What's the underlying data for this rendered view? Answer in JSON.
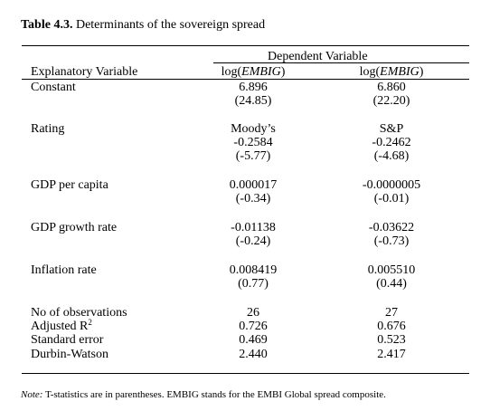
{
  "title": {
    "label": "Table 4.3.",
    "text": "Determinants of the sovereign spread"
  },
  "header": {
    "group": "Dependent Variable",
    "col0": "Explanatory Variable",
    "col1_prefix": "log(",
    "col1_var": "EMBIG",
    "col1_suffix": ")",
    "col2_prefix": "log(",
    "col2_var": "EMBIG",
    "col2_suffix": ")"
  },
  "rows": {
    "constant": {
      "label": "Constant",
      "c1": "6.896",
      "c1_t": "(24.85)",
      "c2": "6.860",
      "c2_t": "(22.20)"
    },
    "rating": {
      "label": "Rating",
      "c1_src": "Moody’s",
      "c2_src": "S&P",
      "c1": "-0.2584",
      "c1_t": "(-5.77)",
      "c2": "-0.2462",
      "c2_t": "(-4.68)"
    },
    "gdp_pc": {
      "label": "GDP per capita",
      "c1": "0.000017",
      "c1_t": "(-0.34)",
      "c2": "-0.0000005",
      "c2_t": "(-0.01)"
    },
    "gdp_growth": {
      "label": "GDP growth rate",
      "c1": "-0.01138",
      "c1_t": "(-0.24)",
      "c2": "-0.03622",
      "c2_t": "(-0.73)"
    },
    "inflation": {
      "label": "Inflation rate",
      "c1": "0.008419",
      "c1_t": "(0.77)",
      "c2": "0.005510",
      "c2_t": "(0.44)"
    }
  },
  "stats": {
    "nobs": {
      "label": "No of observations",
      "c1": "26",
      "c2": "27"
    },
    "adjr2": {
      "label": "Adjusted R",
      "sup": "2",
      "c1": "0.726",
      "c2": "0.676"
    },
    "se": {
      "label": "Standard error",
      "c1": "0.469",
      "c2": "0.523"
    },
    "dw": {
      "label": "Durbin-Watson",
      "c1": "2.440",
      "c2": "2.417"
    }
  },
  "note": {
    "label": "Note:",
    "text": "T-statistics are in parentheses.  EMBIG stands for the EMBI Global spread composite."
  }
}
